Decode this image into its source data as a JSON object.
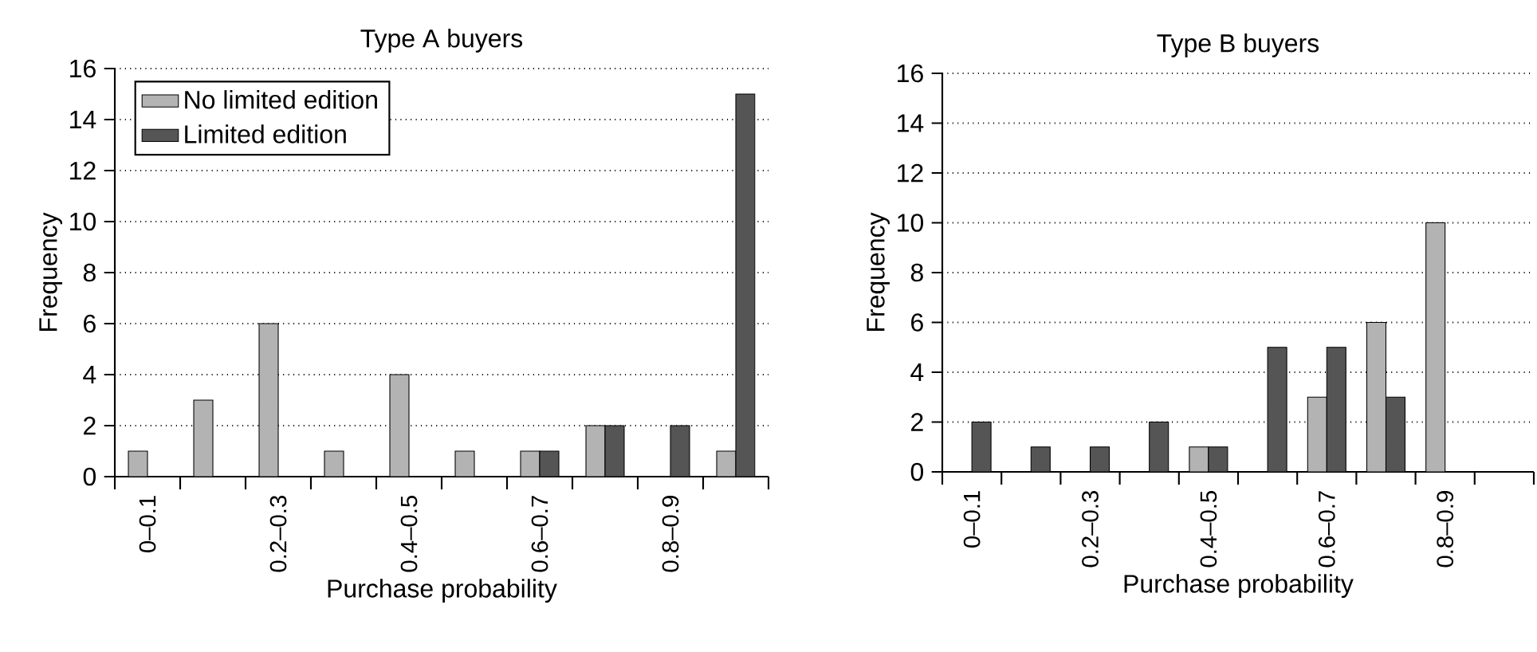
{
  "chart_data": [
    {
      "type": "bar",
      "title": "Type A buyers",
      "xlabel": "Purchase probability",
      "ylabel": "Frequency",
      "categories": [
        "0–0.1",
        null,
        "0.2–0.3",
        null,
        "0.4–0.5",
        null,
        "0.6–0.7",
        null,
        "0.8–0.9",
        null
      ],
      "series": [
        {
          "name": "No limited edition",
          "color": "#b3b3b3",
          "values": [
            1,
            3,
            6,
            1,
            4,
            1,
            1,
            2,
            0,
            1
          ]
        },
        {
          "name": "Limited edition",
          "color": "#555555",
          "values": [
            0,
            0,
            0,
            0,
            0,
            0,
            1,
            2,
            2,
            15
          ]
        }
      ],
      "ylim": [
        0,
        16
      ],
      "yticks": [
        0,
        2,
        4,
        6,
        8,
        10,
        12,
        14,
        16
      ],
      "grid": "y",
      "legend": "top left"
    },
    {
      "type": "bar",
      "title": "Type B buyers",
      "xlabel": "Purchase probability",
      "ylabel": "Frequency",
      "categories": [
        "0–0.1",
        null,
        "0.2–0.3",
        null,
        "0.4–0.5",
        null,
        "0.6–0.7",
        null,
        "0.8–0.9",
        null
      ],
      "series": [
        {
          "color": "#b3b3b3",
          "values": [
            0,
            0,
            0,
            0,
            1,
            0,
            3,
            6,
            10,
            0
          ]
        },
        {
          "color": "#555555",
          "values": [
            2,
            1,
            1,
            2,
            1,
            5,
            5,
            3,
            0,
            0
          ]
        }
      ],
      "ylim": [
        0,
        16
      ],
      "yticks": [
        0,
        2,
        4,
        6,
        8,
        10,
        12,
        14,
        16
      ],
      "grid": "y",
      "legend": false
    }
  ]
}
